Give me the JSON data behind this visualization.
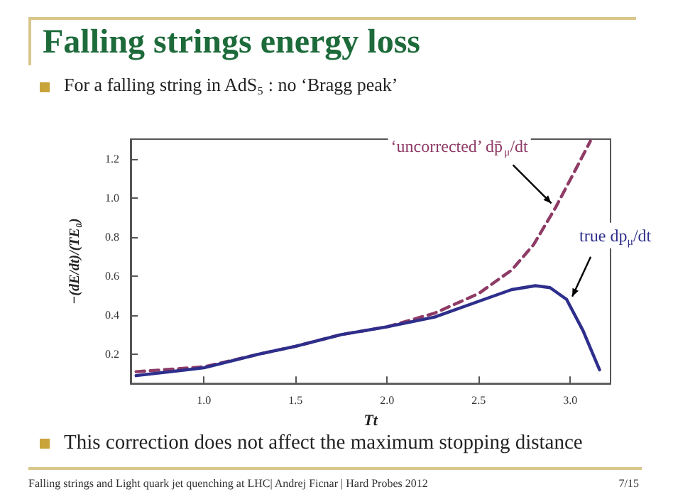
{
  "chart_data": {
    "type": "line",
    "title": "Falling strings energy loss",
    "subtitle": "For a falling string in AdS₅ : no ‘Bragg peak’",
    "xlabel": "Tt",
    "ylabel": "−(dE/dt)/(TE₀)",
    "annotations": [
      "This correction does not affect the maximum stopping distance",
      "Falling strings and Light quark jet quenching at LHC| Andrej Ficnar | Hard Probes 2012",
      "7/15"
    ],
    "series": [
      {
        "name": "‘uncorrected’ dp̄$_{μ}$/dt",
        "color": "#8e3b66",
        "line_style": "dashed",
        "x": [
          0.63,
          1.0,
          1.3,
          1.5,
          1.75,
          2.0,
          2.26,
          2.5,
          2.68,
          2.8,
          2.92,
          3.01,
          3.11
        ],
        "values": [
          0.11,
          0.135,
          0.2,
          0.24,
          0.3,
          0.34,
          0.41,
          0.51,
          0.63,
          0.76,
          0.95,
          1.11,
          1.29
        ]
      },
      {
        "name": "true dp$_{μ}$/dt",
        "color": "#2e2e8c",
        "line_style": "solid",
        "x": [
          0.63,
          1.0,
          1.3,
          1.5,
          1.75,
          2.0,
          2.26,
          2.5,
          2.68,
          2.81,
          2.89,
          2.98,
          3.07,
          3.16
        ],
        "values": [
          0.09,
          0.13,
          0.2,
          0.24,
          0.3,
          0.34,
          0.39,
          0.47,
          0.53,
          0.55,
          0.54,
          0.48,
          0.32,
          0.12
        ]
      }
    ],
    "xlim": [
      0.6,
      3.22
    ],
    "ylim": [
      0.05,
      1.3
    ],
    "xticks": [
      {
        "value": 1,
        "label": "1.0"
      },
      1.5,
      {
        "value": 2,
        "label": "2.0"
      },
      2.5,
      {
        "value": 3,
        "label": "3.0"
      }
    ],
    "yticks": [
      0.2,
      0.4,
      0.6,
      0.8,
      {
        "value": 1,
        "label": "1.0"
      },
      1.2
    ],
    "grid": false,
    "legend": false,
    "marker": "none"
  }
}
